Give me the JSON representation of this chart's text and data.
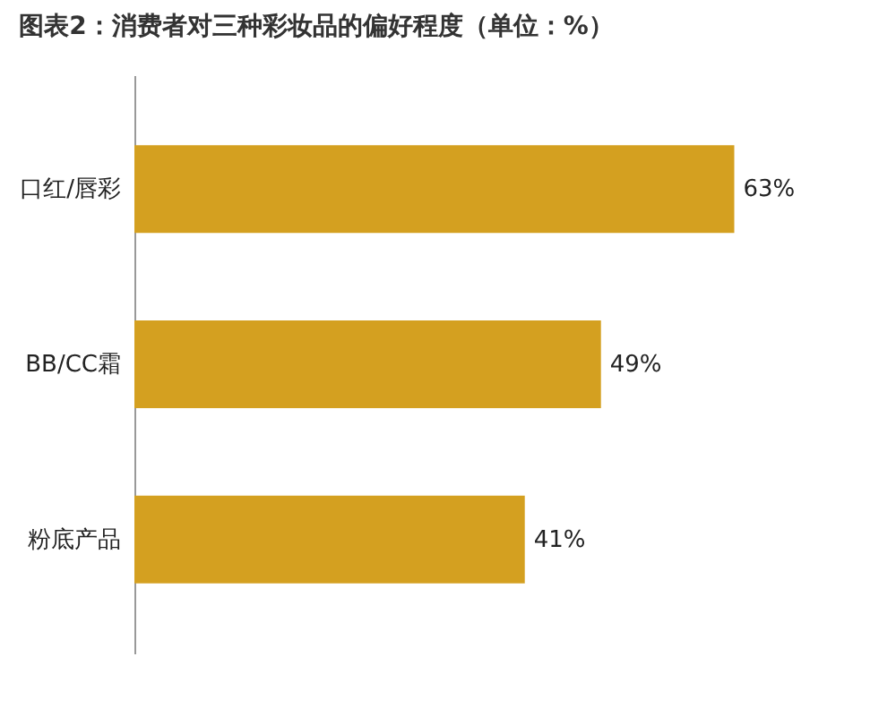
{
  "chart_data": {
    "type": "bar",
    "orientation": "horizontal",
    "title": "图表2：消费者对三种彩妆品的偏好程度（单位：%）",
    "categories": [
      "口红/唇彩",
      "BB/CC霜",
      "粉底产品"
    ],
    "values": [
      63,
      49,
      41
    ],
    "color": "#d4a020",
    "value_labels": [
      "63%",
      "49%",
      "41%"
    ]
  }
}
